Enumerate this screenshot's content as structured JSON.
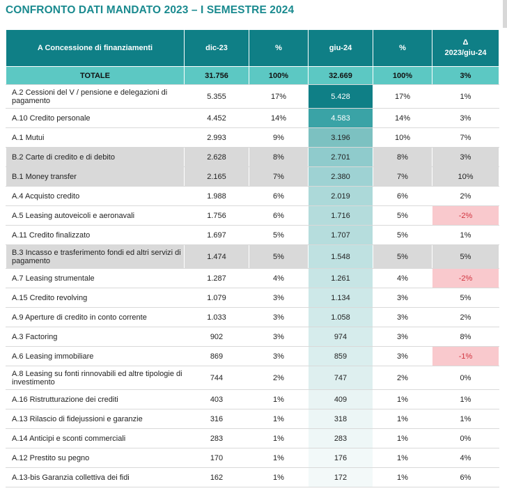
{
  "title": "CONFRONTO DATI MANDATO 2023 – I SEMESTRE 2024",
  "headers": {
    "col1": "A Concessione di finanziamenti",
    "col2": "dic-23",
    "col3": "%",
    "col4": "giu-24",
    "col5": "%",
    "col6_line1": "Δ",
    "col6_line2": "2023/giu-24"
  },
  "total": {
    "label": "TOTALE",
    "dic23": "31.756",
    "pct1": "100%",
    "giu24": "32.669",
    "pct2": "100%",
    "delta": "3%"
  },
  "rows": [
    {
      "label": "A.2 Cessioni del V / pensione e delegazioni di pagamento",
      "dic23": "5.355",
      "pct1": "17%",
      "giu24": "5.428",
      "pct2": "17%",
      "delta": "1%",
      "giu_bg": "#0f7f86",
      "giu_color": "#ffffff"
    },
    {
      "label": "A.10 Credito personale",
      "dic23": "4.452",
      "pct1": "14%",
      "giu24": "4.583",
      "pct2": "14%",
      "delta": "3%",
      "giu_bg": "#3aa3a6",
      "giu_color": "#ffffff"
    },
    {
      "label": "A.1 Mutui",
      "dic23": "2.993",
      "pct1": "9%",
      "giu24": "3.196",
      "pct2": "10%",
      "delta": "7%",
      "giu_bg": "#7cc1c1",
      "giu_color": "#222222"
    },
    {
      "label": "B.2 Carte di credito e di debito",
      "dic23": "2.628",
      "pct1": "8%",
      "giu24": "2.701",
      "pct2": "8%",
      "delta": "3%",
      "giu_bg": "#8fcbcc",
      "giu_color": "#222222"
    },
    {
      "label": "B.1 Money transfer",
      "dic23": "2.165",
      "pct1": "7%",
      "giu24": "2.380",
      "pct2": "7%",
      "delta": "10%",
      "giu_bg": "#9ed2d3",
      "giu_color": "#222222"
    },
    {
      "label": "A.4 Acquisto credito",
      "dic23": "1.988",
      "pct1": "6%",
      "giu24": "2.019",
      "pct2": "6%",
      "delta": "2%",
      "giu_bg": "#acd9d9",
      "giu_color": "#222222"
    },
    {
      "label": "A.5 Leasing autoveicoli e aeronavali",
      "dic23": "1.756",
      "pct1": "6%",
      "giu24": "1.716",
      "pct2": "5%",
      "delta": "-2%",
      "giu_bg": "#b4dcdc",
      "giu_color": "#222222"
    },
    {
      "label": "A.11 Credito finalizzato",
      "dic23": "1.697",
      "pct1": "5%",
      "giu24": "1.707",
      "pct2": "5%",
      "delta": "1%",
      "giu_bg": "#b6dddd",
      "giu_color": "#222222"
    },
    {
      "label": "B.3 Incasso e trasferimento fondi ed altri servizi di pagamento",
      "dic23": "1.474",
      "pct1": "5%",
      "giu24": "1.548",
      "pct2": "5%",
      "delta": "5%",
      "giu_bg": "#bfe1e1",
      "giu_color": "#222222"
    },
    {
      "label": "A.7 Leasing strumentale",
      "dic23": "1.287",
      "pct1": "4%",
      "giu24": "1.261",
      "pct2": "4%",
      "delta": "-2%",
      "giu_bg": "#c7e5e5",
      "giu_color": "#222222"
    },
    {
      "label": "A.15 Credito revolving",
      "dic23": "1.079",
      "pct1": "3%",
      "giu24": "1.134",
      "pct2": "3%",
      "delta": "5%",
      "giu_bg": "#cde8e8",
      "giu_color": "#222222"
    },
    {
      "label": "A.9 Aperture di credito in conto corrente",
      "dic23": "1.033",
      "pct1": "3%",
      "giu24": "1.058",
      "pct2": "3%",
      "delta": "2%",
      "giu_bg": "#d1eaea",
      "giu_color": "#222222"
    },
    {
      "label": "A.3 Factoring",
      "dic23": "902",
      "pct1": "3%",
      "giu24": "974",
      "pct2": "3%",
      "delta": "8%",
      "giu_bg": "#d6ecec",
      "giu_color": "#222222"
    },
    {
      "label": "A.6 Leasing immobiliare",
      "dic23": "869",
      "pct1": "3%",
      "giu24": "859",
      "pct2": "3%",
      "delta": "-1%",
      "giu_bg": "#daeeee",
      "giu_color": "#222222"
    },
    {
      "label": "A.8 Leasing su fonti rinnovabili ed altre tipologie di investimento",
      "dic23": "744",
      "pct1": "2%",
      "giu24": "747",
      "pct2": "2%",
      "delta": "0%",
      "giu_bg": "#deefef",
      "giu_color": "#222222"
    },
    {
      "label": "A.16 Ristrutturazione dei crediti",
      "dic23": "403",
      "pct1": "1%",
      "giu24": "409",
      "pct2": "1%",
      "delta": "1%",
      "giu_bg": "#e9f4f4",
      "giu_color": "#222222"
    },
    {
      "label": "A.13 Rilascio di fidejussioni e garanzie",
      "dic23": "316",
      "pct1": "1%",
      "giu24": "318",
      "pct2": "1%",
      "delta": "1%",
      "giu_bg": "#ecf6f6",
      "giu_color": "#222222"
    },
    {
      "label": "A.14 Anticipi e sconti commerciali",
      "dic23": "283",
      "pct1": "1%",
      "giu24": "283",
      "pct2": "1%",
      "delta": "0%",
      "giu_bg": "#eef7f7",
      "giu_color": "#222222"
    },
    {
      "label": "A.12 Prestito su pegno",
      "dic23": "170",
      "pct1": "1%",
      "giu24": "176",
      "pct2": "1%",
      "delta": "4%",
      "giu_bg": "#f2f9f9",
      "giu_color": "#222222"
    },
    {
      "label": "A.13-bis Garanzia collettiva dei fidi",
      "dic23": "162",
      "pct1": "1%",
      "giu24": "172",
      "pct2": "1%",
      "delta": "6%",
      "giu_bg": "#f3f9f9",
      "giu_color": "#222222"
    }
  ],
  "colors": {
    "header_bg": "#0f7f86",
    "total_bg": "#5cc8c3",
    "title": "#1a8a8f",
    "grey_row": "#d9d9d9",
    "negative_bg": "#f9c9cd",
    "negative_text": "#d1343f"
  }
}
